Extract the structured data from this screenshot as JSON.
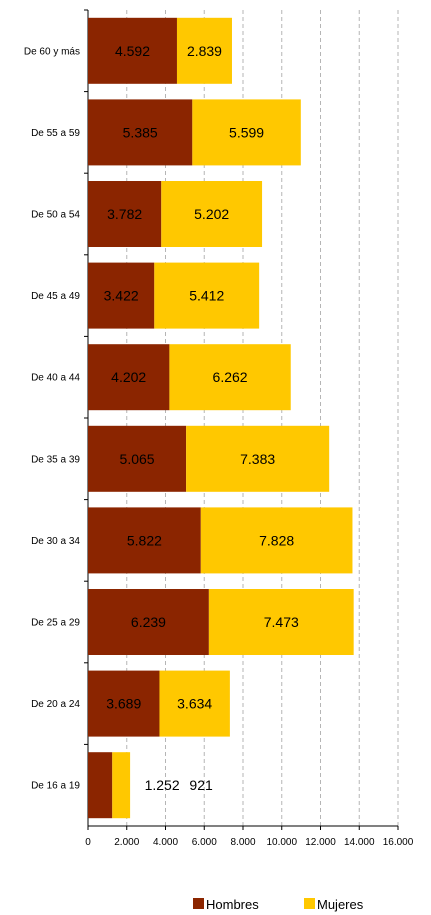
{
  "chart_data": {
    "type": "bar",
    "orientation": "horizontal",
    "stacked": true,
    "categories": [
      "De 60 y más",
      "De 55 a 59",
      "De 50 a 54",
      "De 45 a 49",
      "De 40 a 44",
      "De 35 a 39",
      "De 30 a 34",
      "De 25 a 29",
      "De 20 a 24",
      "De 16 a 19"
    ],
    "series": [
      {
        "name": "Hombres",
        "color": "#8B2500",
        "values": [
          4592,
          5385,
          3782,
          3422,
          4202,
          5065,
          5822,
          6239,
          3689,
          1252
        ],
        "labels": [
          "4.592",
          "5.385",
          "3.782",
          "3.422",
          "4.202",
          "5.065",
          "5.822",
          "6.239",
          "3.689",
          "1.252"
        ]
      },
      {
        "name": "Mujeres",
        "color": "#FFC800",
        "values": [
          2839,
          5599,
          5202,
          5412,
          6262,
          7383,
          7828,
          7473,
          3634,
          921
        ],
        "labels": [
          "2.839",
          "5.599",
          "5.202",
          "5.412",
          "6.262",
          "7.383",
          "7.828",
          "7.473",
          "3.634",
          "921"
        ]
      }
    ],
    "xlim": [
      0,
      16000
    ],
    "xticks": [
      0,
      2000,
      4000,
      6000,
      8000,
      10000,
      12000,
      14000,
      16000
    ],
    "xtick_labels": [
      "0",
      "2.000",
      "4.000",
      "6.000",
      "8.000",
      "10.000",
      "12.000",
      "14.000",
      "16.000"
    ],
    "grid": "vertical-dashed",
    "legend_position": "bottom"
  }
}
